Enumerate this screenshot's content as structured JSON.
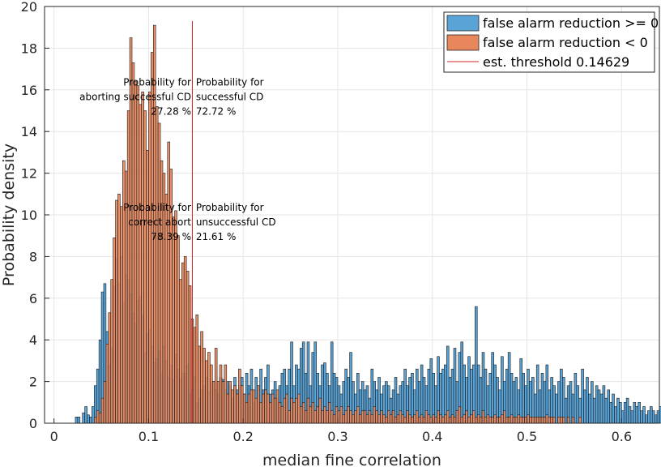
{
  "chart_data": {
    "type": "bar",
    "title": "",
    "xlabel": "median fine correlation",
    "ylabel": "Probability density",
    "xlim": [
      -0.01,
      0.64
    ],
    "ylim": [
      0,
      20
    ],
    "xticks": [
      0,
      0.1,
      0.2,
      0.3,
      0.4,
      0.5,
      0.6
    ],
    "xtick_labels": [
      "0",
      "0.1",
      "0.2",
      "0.3",
      "0.4",
      "0.5",
      "0.6"
    ],
    "yticks": [
      0,
      2,
      4,
      6,
      8,
      10,
      12,
      14,
      16,
      18,
      20
    ],
    "ytick_labels": [
      "0",
      "2",
      "4",
      "6",
      "8",
      "10",
      "12",
      "14",
      "16",
      "18",
      "20"
    ],
    "grid": true,
    "legend_position": "top-right",
    "bin_width": 0.0025,
    "series": [
      {
        "name": "false alarm reduction >= 0",
        "color": "#5aa3d6",
        "x0": 0.0225,
        "values": [
          0.3,
          0.3,
          0,
          0.5,
          0.8,
          0.4,
          0.3,
          0.8,
          1.8,
          2.6,
          4.0,
          6.3,
          6.7,
          4.4,
          2.8,
          3.6,
          6.6,
          7.9,
          6.7,
          8.0,
          5.8,
          7.1,
          6.9,
          6.2,
          5.3,
          4.8,
          5.9,
          6.1,
          5.2,
          3.4,
          4.3,
          4.5,
          3.7,
          2.9,
          3.1,
          3.5,
          2.4,
          3.7,
          3.0,
          2.2,
          2.8,
          2.1,
          3.3,
          2.6,
          2.1,
          2.4,
          2.4,
          2.8,
          1.4,
          1.6,
          2.2,
          1.0,
          1.2,
          1.6,
          1.8,
          2.2,
          1.5,
          1.9,
          2.0,
          1.6,
          1.4,
          2.2,
          2.1,
          1.6,
          2.0,
          1.8,
          1.2,
          2.2,
          1.6,
          1.8,
          2.2,
          1.4,
          2.4,
          1.8,
          2.6,
          1.0,
          2.2,
          1.8,
          2.6,
          1.6,
          2.2,
          2.8,
          1.4,
          1.6,
          2.0,
          1.2,
          1.8,
          2.4,
          2.6,
          1.8,
          2.6,
          3.9,
          1.8,
          2.8,
          2.6,
          3.6,
          3.9,
          2.4,
          3.9,
          1.8,
          3.4,
          3.9,
          2.4,
          1.8,
          2.8,
          2.9,
          2.4,
          1.8,
          3.9,
          2.4,
          2.2,
          1.8,
          1.4,
          2.0,
          2.6,
          2.2,
          3.4,
          2.0,
          1.4,
          2.4,
          1.6,
          2.0,
          1.6,
          1.8,
          1.2,
          2.6,
          2.0,
          1.6,
          2.2,
          1.4,
          1.8,
          2.0,
          1.8,
          1.2,
          1.6,
          2.2,
          1.4,
          1.8,
          2.0,
          2.6,
          1.8,
          2.2,
          2.4,
          1.6,
          2.6,
          2.0,
          2.8,
          2.2,
          1.8,
          2.6,
          3.1,
          2.4,
          1.8,
          3.2,
          2.4,
          2.6,
          2.8,
          3.7,
          2.2,
          2.6,
          3.6,
          2.0,
          3.4,
          3.9,
          2.8,
          2.2,
          3.2,
          2.6,
          2.8,
          5.6,
          2.8,
          2.2,
          3.4,
          2.6,
          1.8,
          2.4,
          3.4,
          2.8,
          2.2,
          1.6,
          3.2,
          2.0,
          2.6,
          3.4,
          2.4,
          2.0,
          2.2,
          1.6,
          3.1,
          2.4,
          1.8,
          2.6,
          2.0,
          2.2,
          1.4,
          2.8,
          1.6,
          2.4,
          2.0,
          2.8,
          1.6,
          2.2,
          1.8,
          1.4,
          2.0,
          2.6,
          2.2,
          1.2,
          1.8,
          2.0,
          1.4,
          2.4,
          1.8,
          1.2,
          2.6,
          1.6,
          2.2,
          1.4,
          2.0,
          1.2,
          1.8,
          1.6,
          1.4,
          1.8,
          1.2,
          1.6,
          1.0,
          1.4,
          0.8,
          1.2,
          1.0,
          0.6,
          1.0,
          1.2,
          0.8,
          0.6,
          1.0,
          0.8,
          1.0,
          0.6,
          0.8,
          0.4,
          0.6,
          0.8,
          0.6,
          0.4,
          0.6,
          0.8,
          0.3,
          0.6,
          0.4,
          0.8,
          0.3,
          0.4,
          0.6,
          0.3,
          0.4,
          0.3,
          0.3,
          0,
          0.3,
          0,
          0,
          0.3,
          0.3,
          0,
          0.3,
          0,
          0,
          0,
          0,
          0,
          0.3
        ]
      },
      {
        "name": "false alarm reduction < 0",
        "color": "#e8865c",
        "x0": 0.0425,
        "values": [
          0.3,
          0.6,
          0.5,
          1.2,
          2.0,
          3.8,
          5.3,
          6.9,
          8.9,
          10.7,
          11.0,
          10.4,
          12.6,
          12.1,
          15.0,
          18.5,
          17.3,
          16.4,
          16.2,
          15.3,
          15.9,
          15.0,
          13.1,
          15.9,
          17.8,
          19.1,
          15.2,
          14.4,
          12.6,
          12.0,
          11.0,
          13.5,
          12.2,
          9.9,
          10.2,
          9.0,
          6.9,
          7.7,
          8.0,
          7.3,
          6.6,
          5.0,
          4.6,
          5.2,
          3.7,
          4.4,
          3.6,
          3.0,
          3.4,
          2.8,
          2.0,
          3.6,
          2.0,
          2.8,
          2.0,
          2.8,
          1.4,
          2.0,
          1.6,
          1.8,
          1.4,
          2.6,
          1.8,
          1.4,
          1.0,
          1.4,
          1.6,
          1.6,
          1.2,
          1.8,
          1.0,
          1.4,
          1.6,
          1.4,
          1.0,
          1.4,
          1.2,
          1.6,
          1.0,
          0.8,
          1.2,
          1.4,
          0.6,
          1.2,
          1.0,
          1.2,
          1.4,
          0.8,
          1.0,
          0.6,
          1.2,
          0.8,
          1.0,
          0.6,
          0.8,
          1.2,
          0.6,
          0.8,
          0.6,
          1.0,
          0.6,
          0.4,
          0.8,
          0.6,
          0.8,
          0.4,
          0.6,
          0.8,
          0.6,
          0.4,
          0.6,
          0.8,
          0.4,
          0.6,
          0.6,
          0.4,
          0.6,
          0.4,
          0.8,
          0.6,
          0.4,
          0.6,
          0.4,
          0.3,
          0.6,
          0.4,
          0.6,
          0.3,
          0.4,
          0.6,
          0.4,
          0.3,
          0.6,
          0.4,
          0.3,
          0.4,
          0.6,
          0.3,
          0.4,
          0.3,
          0.6,
          0.4,
          0.3,
          0.4,
          0.3,
          0.6,
          0.4,
          0.3,
          0.4,
          0.6,
          0.3,
          0.4,
          0.3,
          0.6,
          0.8,
          0.3,
          0.4,
          0.6,
          0.3,
          0.4,
          0.6,
          0.3,
          0.4,
          0.3,
          0.6,
          0.3,
          0.4,
          0.3,
          0.3,
          0.4,
          0.3,
          0.3,
          0.4,
          0.6,
          0.3,
          0.3,
          0.4,
          0.3,
          0.3,
          0.4,
          0.3,
          0.3,
          0.3,
          0.4,
          0.3,
          0.3,
          0.3,
          0.3,
          0.3,
          0.3,
          0.3,
          0.4,
          0.3,
          0.3,
          0.3,
          0,
          0.3,
          0.3,
          0.3,
          0,
          0.3,
          0,
          0.3,
          0,
          0,
          0.3
        ]
      }
    ],
    "threshold": {
      "name": "est. threshold 0.14629",
      "x": 0.14629,
      "y_top": 19.3,
      "color": "#d62728"
    },
    "annotations": [
      {
        "lines": [
          "Probability for",
          "aborting successful CD",
          "27.28 %"
        ],
        "x": 0.145,
        "y": 16.2,
        "align": "right"
      },
      {
        "lines": [
          "Probability for",
          "successful CD",
          "72.72 %"
        ],
        "x": 0.15,
        "y": 16.2,
        "align": "left"
      },
      {
        "lines": [
          "Probability for",
          "correct abort",
          "78.39 %"
        ],
        "x": 0.145,
        "y": 10.2,
        "align": "right"
      },
      {
        "lines": [
          "Probability for",
          "unsuccessful CD",
          "21.61 %"
        ],
        "x": 0.15,
        "y": 10.2,
        "align": "left"
      }
    ]
  }
}
